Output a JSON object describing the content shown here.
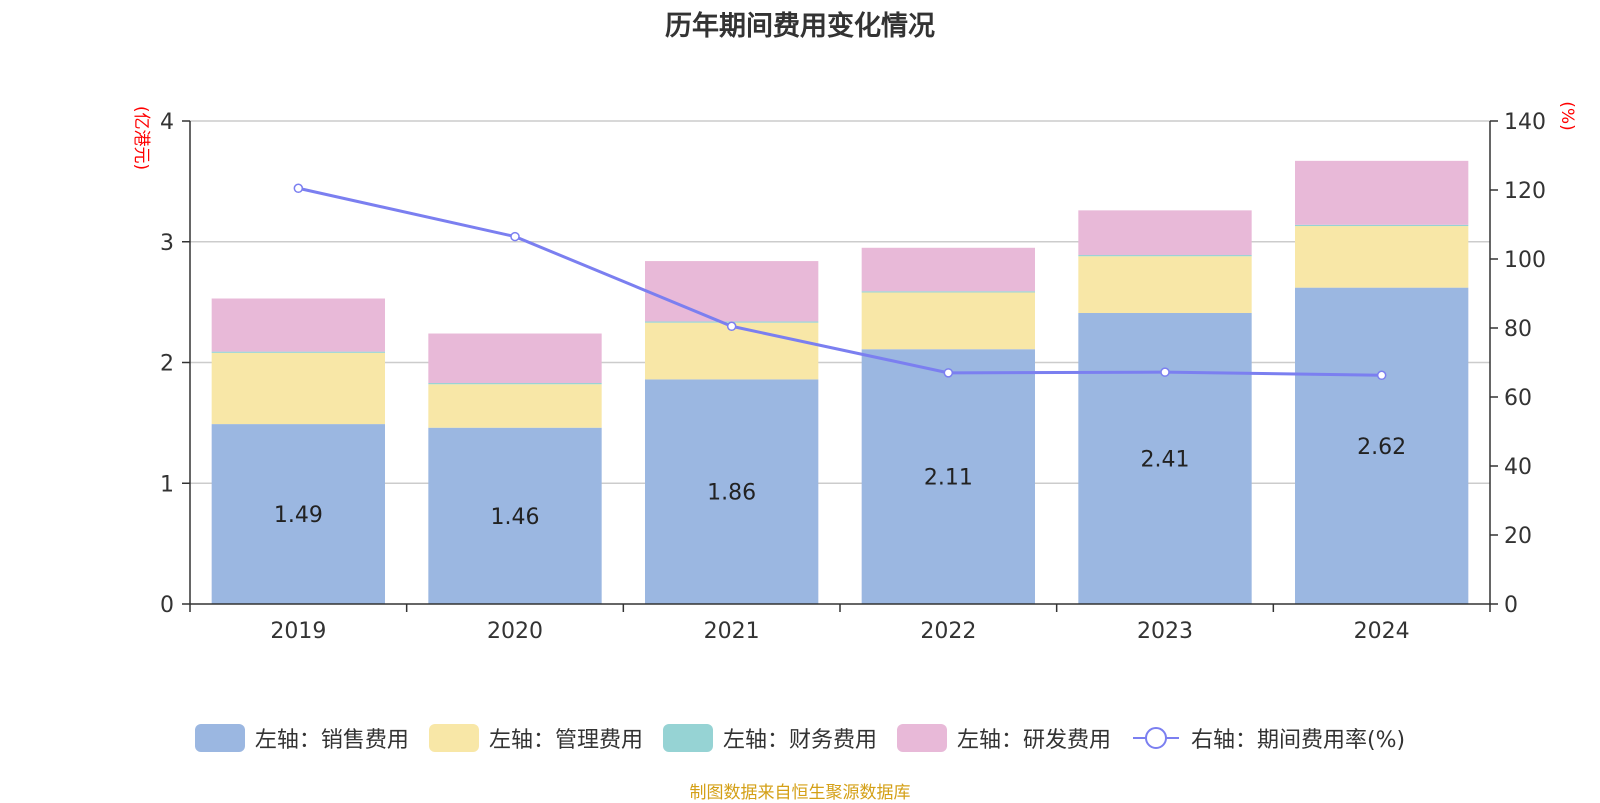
{
  "chart_data": {
    "type": "bar",
    "title": "历年期间费用变化情况",
    "categories": [
      "2019",
      "2020",
      "2021",
      "2022",
      "2023",
      "2024"
    ],
    "left_axis": {
      "unit_label": "(亿港元)",
      "ylim": [
        0,
        4
      ],
      "ticks": [
        "0",
        "1",
        "2",
        "3",
        "4"
      ]
    },
    "right_axis": {
      "unit_label": "(%)",
      "ylim": [
        0,
        140
      ],
      "ticks": [
        "0",
        "20",
        "40",
        "60",
        "80",
        "100",
        "120",
        "140"
      ]
    },
    "series": [
      {
        "name": "左轴：销售费用",
        "type": "bar",
        "stack": "left",
        "color": "#9bb7e1",
        "values": [
          1.49,
          1.46,
          1.86,
          2.11,
          2.41,
          2.62
        ],
        "labels": [
          "1.49",
          "1.46",
          "1.86",
          "2.11",
          "2.41",
          "2.62"
        ]
      },
      {
        "name": "左轴：管理费用",
        "type": "bar",
        "stack": "left",
        "color": "#f8e7a7",
        "values": [
          0.59,
          0.36,
          0.47,
          0.47,
          0.47,
          0.51
        ]
      },
      {
        "name": "左轴：财务费用",
        "type": "bar",
        "stack": "left",
        "color": "#96d3d4",
        "values": [
          0.01,
          0.01,
          0.01,
          0.01,
          0.01,
          0.01
        ]
      },
      {
        "name": "左轴：研发费用",
        "type": "bar",
        "stack": "left",
        "color": "#e8b9d8",
        "values": [
          0.44,
          0.41,
          0.5,
          0.36,
          0.37,
          0.53
        ]
      },
      {
        "name": "右轴：期间费用率(%)",
        "type": "line",
        "axis": "right",
        "color": "#7b7ff0",
        "values": [
          120.5,
          106.5,
          80.5,
          67.0,
          67.2,
          66.3
        ]
      }
    ],
    "grid": true,
    "legend_position": "bottom"
  },
  "colors": {
    "axis_unit": "#ff0000",
    "footer": "#d4a017"
  },
  "footer": "制图数据来自恒生聚源数据库"
}
